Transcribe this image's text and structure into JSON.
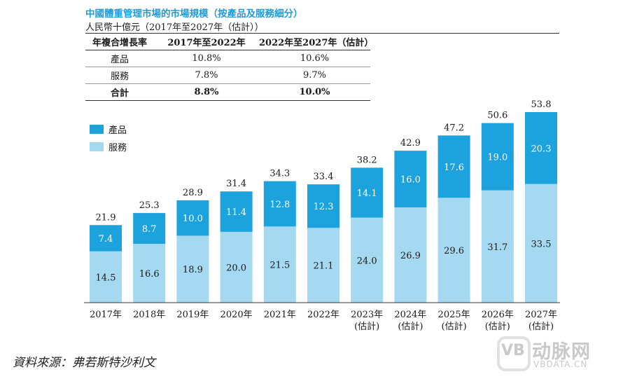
{
  "title": "中國體重管理市場的市場規模（按產品及服務細分）",
  "subtitle": "人民幣十億元（2017年至2027年（估計））",
  "cagr_table": {
    "headers": [
      "年複合增長率",
      "2017年至2022年",
      "2022年至2027年（估計）"
    ],
    "rows": [
      [
        "產品",
        "10.8%",
        "10.6%"
      ],
      [
        "服務",
        "7.8%",
        "9.7%"
      ],
      [
        "合計",
        "8.8%",
        "10.0%"
      ]
    ]
  },
  "colors": {
    "product": "#1ca2dc",
    "service": "#a5d9f1",
    "title": "#1f9bd7"
  },
  "source": "資料來源：弗若斯特沙利文",
  "watermark": {
    "brand": "动脉网",
    "url": "VBDATA.CN",
    "logo_text": "VB"
  },
  "chart_data": {
    "type": "bar",
    "stacked": true,
    "categories": [
      "2017年",
      "2018年",
      "2019年",
      "2020年",
      "2021年",
      "2022年",
      "2023年\n(估計)",
      "2024年\n(估計)",
      "2025年\n(估計)",
      "2026年\n(估計)",
      "2027年\n(估計)"
    ],
    "series": [
      {
        "name": "服務",
        "color": "#a5d9f1",
        "values": [
          14.5,
          16.6,
          18.9,
          20.0,
          21.5,
          21.1,
          24.0,
          26.9,
          29.6,
          31.7,
          33.5
        ]
      },
      {
        "name": "產品",
        "color": "#1ca2dc",
        "values": [
          7.4,
          8.7,
          10.0,
          11.4,
          12.8,
          12.3,
          14.1,
          16.0,
          17.6,
          19.0,
          20.3
        ]
      }
    ],
    "totals": [
      21.9,
      25.3,
      28.9,
      31.4,
      34.3,
      33.4,
      38.2,
      42.9,
      47.2,
      50.6,
      53.8
    ],
    "legend": [
      "產品",
      "服務"
    ],
    "legend_position": "top-left",
    "grid": false,
    "ylim": [
      0,
      53.8
    ]
  }
}
